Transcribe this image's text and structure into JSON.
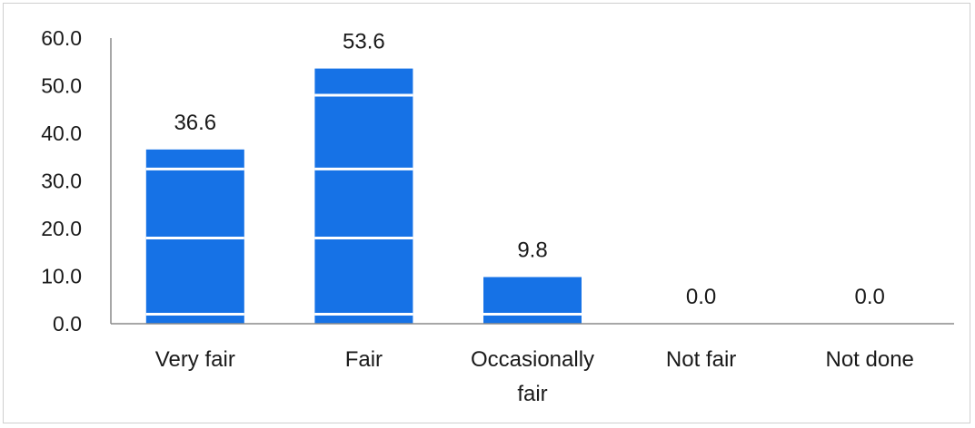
{
  "chart_data": {
    "type": "bar",
    "title": "",
    "xlabel": "",
    "ylabel": "",
    "categories": [
      [
        "Very fair"
      ],
      [
        "Fair"
      ],
      [
        "Occasionally",
        "fair"
      ],
      [
        "Not fair"
      ],
      [
        "Not done"
      ]
    ],
    "values": [
      36.6,
      53.6,
      9.8,
      0.0,
      0.0
    ],
    "data_labels": [
      "36.6",
      "53.6",
      "9.8",
      "0.0",
      "0.0"
    ],
    "y_ticks": [
      "0.0",
      "10.0",
      "20.0",
      "30.0",
      "40.0",
      "50.0",
      "60.0"
    ],
    "ylim": [
      0,
      60
    ],
    "grid": false,
    "legend": "none",
    "bar_color": "#1672e6",
    "band_color": "#ffffff"
  }
}
